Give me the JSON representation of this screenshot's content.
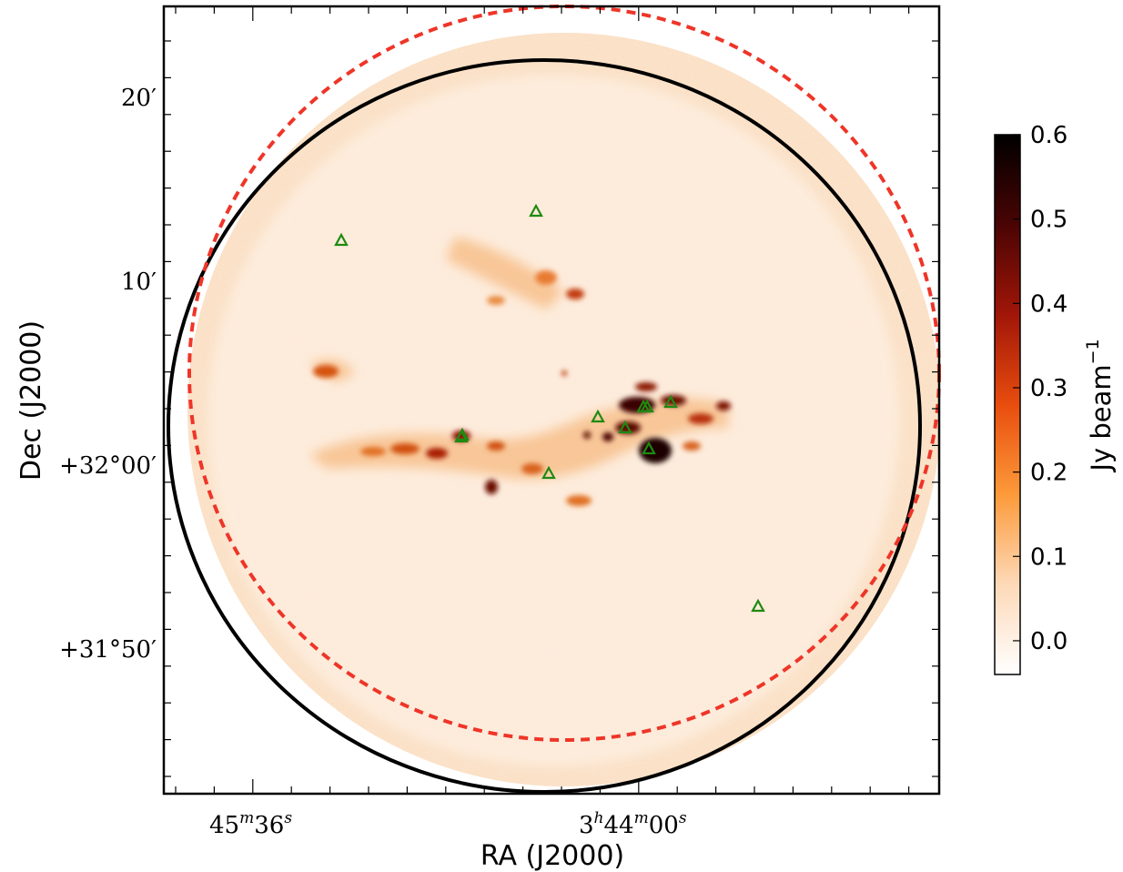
{
  "figure": {
    "xlabel": "RA (J2000)",
    "ylabel": "Dec (J2000)",
    "ra_ticks": [
      {
        "label_pre": "45",
        "label_sup1": "m",
        "label_mid": "36",
        "label_sup2": "s"
      },
      {
        "label_pre": "3",
        "label_sup1": "h",
        "label_mid": "44",
        "label_sup2": "m",
        "label_post": "00",
        "label_sup3": "s"
      }
    ],
    "dec_ticks": [
      "20′",
      "10′",
      "+32°00′",
      "+31°50′"
    ]
  },
  "colorbar": {
    "label": "Jy beam",
    "label_exponent": "−1",
    "ticks": [
      "0.6",
      "0.5",
      "0.4",
      "0.3",
      "0.2",
      "0.1",
      "0.0"
    ],
    "range": [
      -0.04,
      0.6
    ],
    "colormap": [
      "#ffffff",
      "#fdd9b8",
      "#fd9a3a",
      "#e84d0e",
      "#a11608",
      "#4a0404",
      "#000000"
    ]
  },
  "map": {
    "background_color": "#fbe3cb",
    "primary_beam_color": "#000000",
    "mosaic_edge_color": "#ee3528",
    "source_marker_color": "#1e8a10",
    "source_marker_shape": "triangle",
    "source_count": 12
  }
}
